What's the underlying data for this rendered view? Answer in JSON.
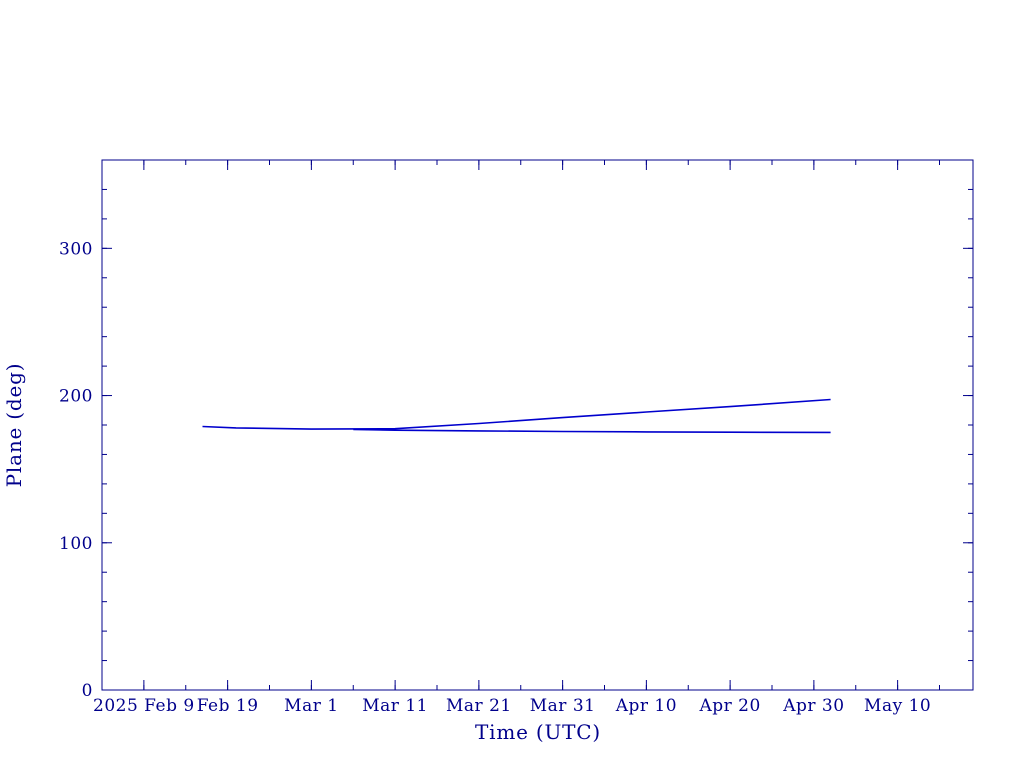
{
  "chart_data": {
    "type": "line",
    "xlabel": "Time (UTC)",
    "ylabel": "Plane (deg)",
    "x_axis_kind": "date",
    "xlim": [
      "2025-02-04",
      "2025-05-19"
    ],
    "ylim": [
      0,
      360
    ],
    "x_ticks": [
      {
        "date": "2025-02-09",
        "label": "2025 Feb  9"
      },
      {
        "date": "2025-02-19",
        "label": "Feb 19"
      },
      {
        "date": "2025-03-01",
        "label": "Mar  1"
      },
      {
        "date": "2025-03-11",
        "label": "Mar 11"
      },
      {
        "date": "2025-03-21",
        "label": "Mar 21"
      },
      {
        "date": "2025-03-31",
        "label": "Mar 31"
      },
      {
        "date": "2025-04-10",
        "label": "Apr 10"
      },
      {
        "date": "2025-04-20",
        "label": "Apr 20"
      },
      {
        "date": "2025-04-30",
        "label": "Apr 30"
      },
      {
        "date": "2025-05-10",
        "label": "May 10"
      }
    ],
    "y_ticks": [
      0,
      100,
      200,
      300
    ],
    "y_tick_labels": [
      "0",
      "100",
      "200",
      "300"
    ],
    "grid": false,
    "legend": "none",
    "colors": {
      "axis": "#00008b",
      "line": "#0000cd"
    },
    "series": [
      {
        "x": [
          "2025-02-16",
          "2025-02-20",
          "2025-03-01",
          "2025-03-11",
          "2025-03-21",
          "2025-03-31",
          "2025-04-10",
          "2025-04-20",
          "2025-05-02"
        ],
        "values": [
          179,
          178,
          177.2,
          177.5,
          181,
          185,
          188.8,
          192.5,
          197.3
        ]
      },
      {
        "x": [
          "2025-03-06",
          "2025-03-11",
          "2025-03-21",
          "2025-03-31",
          "2025-04-10",
          "2025-04-20",
          "2025-05-02"
        ],
        "values": [
          177,
          176.5,
          176,
          175.6,
          175.3,
          175.1,
          175
        ]
      }
    ]
  }
}
